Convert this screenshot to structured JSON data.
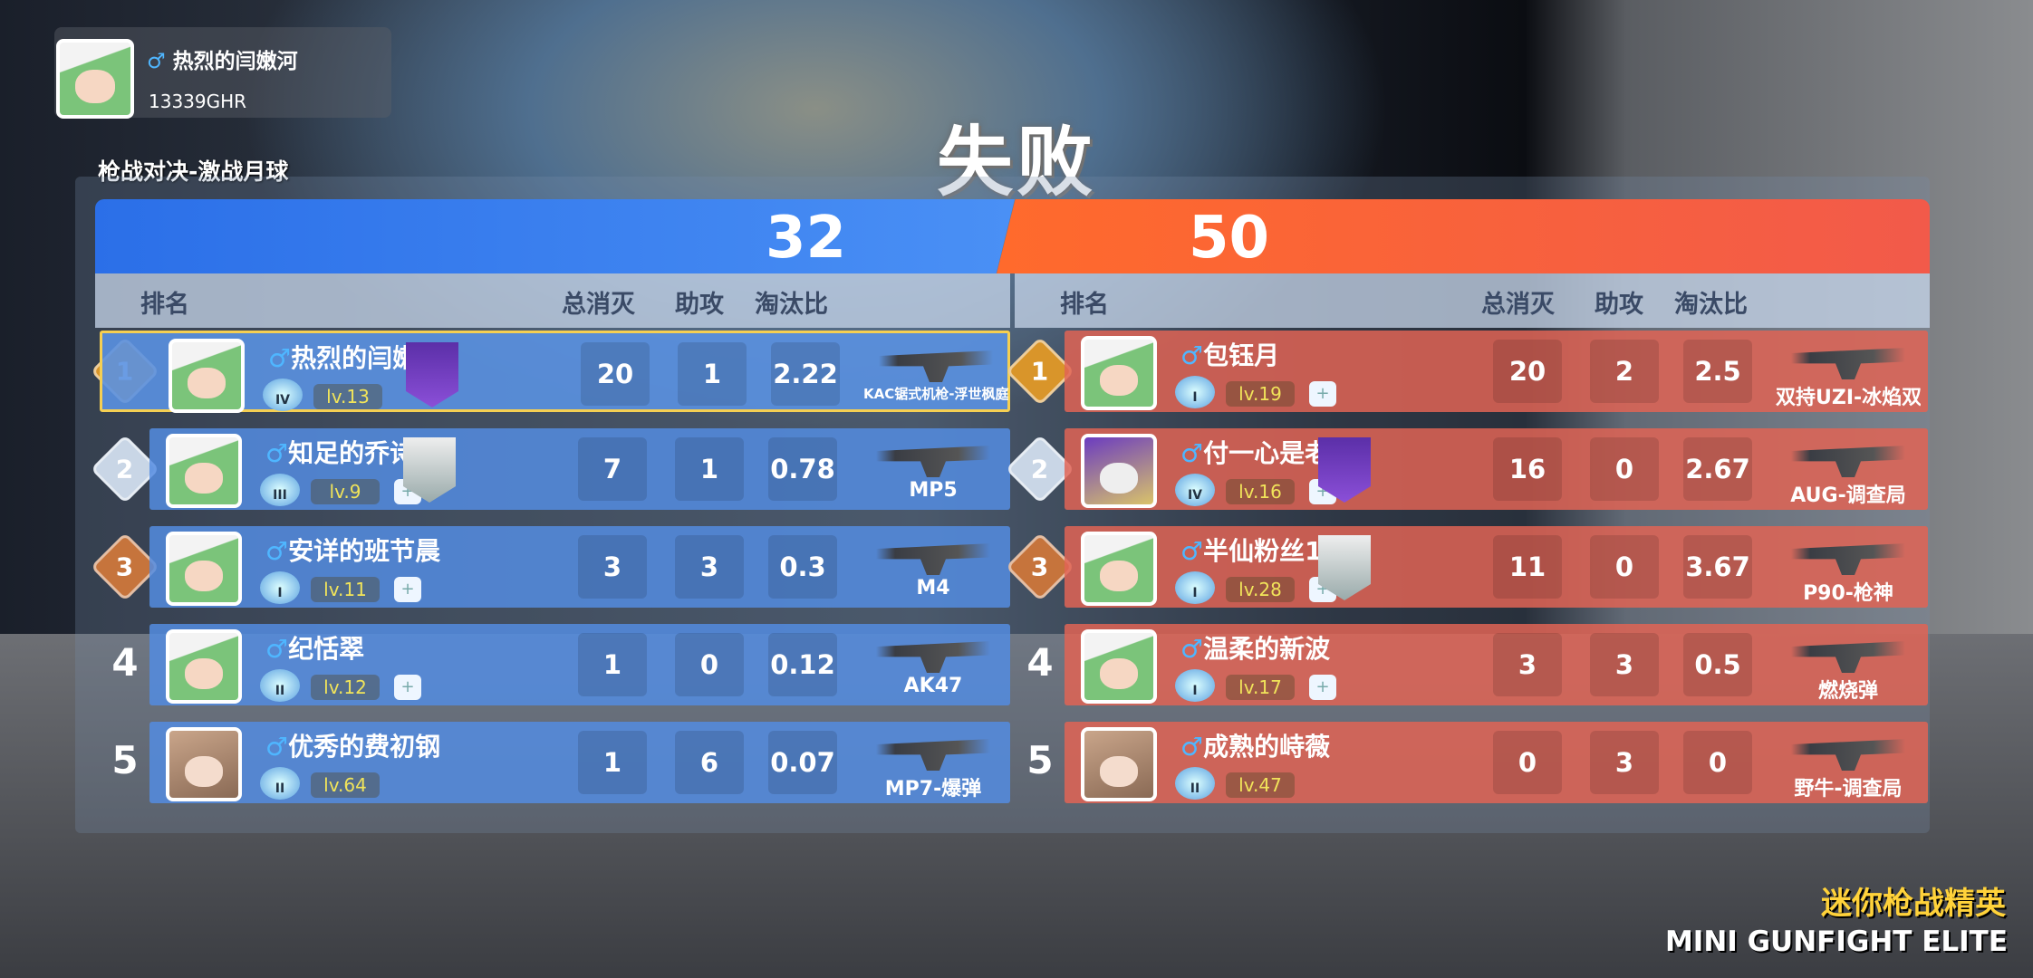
{
  "player": {
    "name": "热烈的闫嫩河",
    "id": "13339GHR"
  },
  "result": "失败",
  "mode": "枪战对决-激战月球",
  "colors": {
    "blue_team": "#3b82f0",
    "red_team": "#f2663a",
    "gold": "#f5cf52",
    "level": "#f1e45a"
  },
  "headers": {
    "rank": "排名",
    "kills": "总消灭",
    "assists": "助攻",
    "ratio": "淘汰比"
  },
  "blue": {
    "score": "32",
    "rows": [
      {
        "rank": "1",
        "name": "热烈的闫嫩河",
        "level": "lv.13",
        "tier": "IV",
        "kills": "20",
        "assists": "1",
        "ratio": "2.22",
        "weapon": "KAC锯式机枪-浮世枫庭",
        "emblem": "purple",
        "add_friend": false,
        "avatar": "boy",
        "highlight": true
      },
      {
        "rank": "2",
        "name": "知足的乔诗纨",
        "level": "lv.9",
        "tier": "III",
        "kills": "7",
        "assists": "1",
        "ratio": "0.78",
        "weapon": "MP5",
        "emblem": "silver",
        "add_friend": true,
        "avatar": "boy"
      },
      {
        "rank": "3",
        "name": "安详的班节晨",
        "level": "lv.11",
        "tier": "I",
        "kills": "3",
        "assists": "3",
        "ratio": "0.3",
        "weapon": "M4",
        "emblem": "",
        "add_friend": true,
        "avatar": "boy"
      },
      {
        "rank": "4",
        "name": "纪恬翠",
        "level": "lv.12",
        "tier": "II",
        "kills": "1",
        "assists": "0",
        "ratio": "0.12",
        "weapon": "AK47",
        "emblem": "",
        "add_friend": true,
        "avatar": "boy"
      },
      {
        "rank": "5",
        "name": "优秀的费初钢",
        "level": "lv.64",
        "tier": "II",
        "kills": "1",
        "assists": "6",
        "ratio": "0.07",
        "weapon": "MP7-爆弹",
        "emblem": "",
        "add_friend": false,
        "avatar": "girl"
      }
    ]
  },
  "red": {
    "score": "50",
    "rows": [
      {
        "rank": "1",
        "name": "包钰月",
        "level": "lv.19",
        "tier": "I",
        "kills": "20",
        "assists": "2",
        "ratio": "2.5",
        "weapon": "双持UZI-冰焰双生",
        "emblem": "",
        "add_friend": true,
        "avatar": "boy"
      },
      {
        "rank": "2",
        "name": "付一心是老鼠",
        "level": "lv.16",
        "tier": "IV",
        "kills": "16",
        "assists": "0",
        "ratio": "2.67",
        "weapon": "AUG-调查局",
        "emblem": "purple",
        "add_friend": true,
        "avatar": "wolf"
      },
      {
        "rank": "3",
        "name": "半仙粉丝11",
        "level": "lv.28",
        "tier": "I",
        "kills": "11",
        "assists": "0",
        "ratio": "3.67",
        "weapon": "P90-枪神",
        "emblem": "silver",
        "add_friend": true,
        "avatar": "boy"
      },
      {
        "rank": "4",
        "name": "温柔的新波",
        "level": "lv.17",
        "tier": "I",
        "kills": "3",
        "assists": "3",
        "ratio": "0.5",
        "weapon": "燃烧弹",
        "emblem": "",
        "add_friend": true,
        "avatar": "boy"
      },
      {
        "rank": "5",
        "name": "成熟的峙薇",
        "level": "lv.47",
        "tier": "II",
        "kills": "0",
        "assists": "3",
        "ratio": "0",
        "weapon": "野牛-调查局",
        "emblem": "",
        "add_friend": false,
        "avatar": "girl"
      }
    ]
  },
  "logo": {
    "cn": "迷你枪战精英",
    "en": "MINI GUNFIGHT ELITE"
  }
}
